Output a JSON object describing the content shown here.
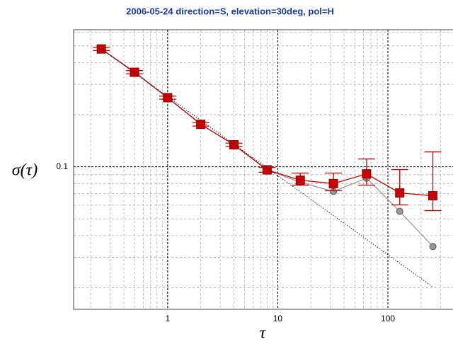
{
  "chart_data": {
    "type": "line",
    "title": "2006-05-24 direction=S, elevation=30deg, pol=H",
    "y_label": "σ(τ)",
    "x_label": "τ",
    "log_x": true,
    "log_y": true,
    "grid": true,
    "xlim": [
      0.14,
      390
    ],
    "ylim": [
      0.015,
      0.62
    ],
    "xticks": [
      1,
      10,
      100
    ],
    "yticks": [
      0.1
    ],
    "x_minor_grid": [
      0.2,
      0.3,
      0.4,
      0.5,
      0.6,
      0.7,
      0.8,
      0.9,
      2,
      3,
      4,
      5,
      6,
      7,
      8,
      9,
      20,
      30,
      40,
      50,
      60,
      70,
      80,
      90,
      200,
      300
    ],
    "y_minor_grid": [
      0.02,
      0.03,
      0.04,
      0.05,
      0.06,
      0.07,
      0.08,
      0.09,
      0.2,
      0.3,
      0.4,
      0.5,
      0.6
    ],
    "x": [
      0.25,
      0.5,
      1,
      2,
      4,
      8,
      16,
      32,
      64,
      128,
      256
    ],
    "series": [
      {
        "color": "#999999",
        "marker": "circle",
        "values": [
          0.48,
          0.352,
          0.251,
          0.176,
          0.134,
          0.096,
          0.0813,
          0.072,
          0.086,
          0.0553,
          0.0346
        ]
      },
      {
        "color": "#cc0000",
        "marker": "square",
        "values": [
          0.48,
          0.352,
          0.251,
          0.176,
          0.134,
          0.096,
          0.0836,
          0.08,
          0.091,
          0.0706,
          0.068
        ],
        "upper": [
          0.49,
          0.36,
          0.256,
          0.18,
          0.137,
          0.099,
          0.092,
          0.092,
          0.111,
          0.0963,
          0.122
        ],
        "lower": [
          0.47,
          0.345,
          0.246,
          0.172,
          0.131,
          0.093,
          0.0783,
          0.0727,
          0.0783,
          0.0602,
          0.0558
        ]
      },
      {
        "color": "#222222",
        "style": "dotted",
        "x": [
          0.25,
          256
        ],
        "values": [
          0.48,
          0.0202
        ]
      }
    ]
  }
}
